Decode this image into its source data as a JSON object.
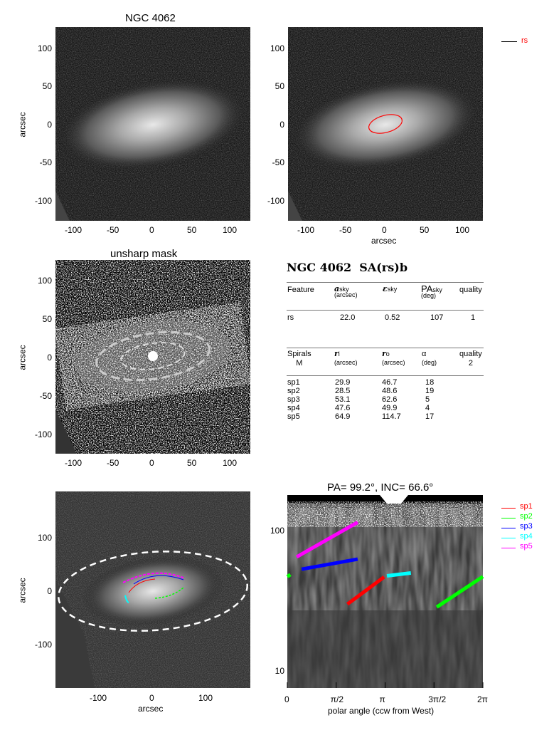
{
  "panels": {
    "p1": {
      "title": "NGC 4062",
      "ylabel": "arcsec",
      "yticks": [
        "100",
        "50",
        "0",
        "-50",
        "-100"
      ],
      "xticks": [
        "-100",
        "-50",
        "0",
        "50",
        "100"
      ]
    },
    "p2": {
      "xlabel": "arcsec",
      "yticks": [
        "100",
        "50",
        "0",
        "-50",
        "-100"
      ],
      "xticks": [
        "-100",
        "-50",
        "0",
        "50",
        "100"
      ],
      "legend": [
        {
          "label": "rs",
          "color": "#ff0000"
        }
      ]
    },
    "p3": {
      "title": "unsharp mask",
      "ylabel": "arcsec",
      "yticks": [
        "100",
        "50",
        "0",
        "-50",
        "-100"
      ],
      "xticks": [
        "-100",
        "-50",
        "0",
        "50",
        "100"
      ]
    },
    "p5": {
      "xlabel": "arcsec",
      "ylabel": "arcsec",
      "yticks": [
        "100",
        "0",
        "-100"
      ],
      "xticks": [
        "-100",
        "0",
        "100"
      ]
    }
  },
  "table": {
    "title": "NGC 4062  SA(rs)b",
    "h1": {
      "feature": "Feature",
      "a": "a",
      "a_sub": "sky",
      "a_unit": "(arcsec)",
      "e": "ε",
      "e_sub": "sky",
      "pa": "PA",
      "pa_sub": "sky",
      "pa_unit": "(deg)",
      "quality": "quality"
    },
    "rows1": [
      {
        "feature": "rs",
        "a": "22.0",
        "e": "0.52",
        "pa": "107",
        "quality": "1"
      }
    ],
    "h2": {
      "spirals": "Spirals",
      "m": "M",
      "ri": "r",
      "ri_sub": "i",
      "ri_unit": "(arcsec)",
      "ro": "r",
      "ro_sub": "o",
      "ro_unit": "(arcsec)",
      "alpha": "α",
      "alpha_unit": "(deg)",
      "quality": "quality",
      "quality_val": "2"
    },
    "rows2": [
      {
        "name": "sp1",
        "ri": "29.9",
        "ro": "46.7",
        "alpha": "18"
      },
      {
        "name": "sp2",
        "ri": "28.5",
        "ro": "48.6",
        "alpha": "19"
      },
      {
        "name": "sp3",
        "ri": "53.1",
        "ro": "62.6",
        "alpha": "5"
      },
      {
        "name": "sp4",
        "ri": "47.6",
        "ro": "49.9",
        "alpha": "4"
      },
      {
        "name": "sp5",
        "ri": "64.9",
        "ro": "114.7",
        "alpha": "17"
      }
    ]
  },
  "chart_data": {
    "type": "line",
    "title": "PA=  99.2°, INC=  66.6°",
    "xlabel": "polar angle (ccw from West)",
    "ylabel": "",
    "xlim": [
      0,
      6.2832
    ],
    "ylim": [
      7,
      170
    ],
    "yscale": "log",
    "xticks": [
      {
        "v": 0,
        "label": "0"
      },
      {
        "v": 1.5708,
        "label": "π/2"
      },
      {
        "v": 3.1416,
        "label": "π"
      },
      {
        "v": 4.7124,
        "label": "3π/2"
      },
      {
        "v": 6.2832,
        "label": "2π"
      }
    ],
    "yticks": [
      {
        "v": 100,
        "label": "100"
      },
      {
        "v": 10,
        "label": "10"
      }
    ],
    "legend": "right",
    "series": [
      {
        "name": "sp1",
        "color": "#ff0000",
        "segments": [
          [
            [
              1.93,
              29.9
            ],
            [
              3.11,
              46.7
            ]
          ]
        ]
      },
      {
        "name": "sp2",
        "color": "#00ff00",
        "segments": [
          [
            [
              4.8,
              28.5
            ],
            [
              6.2832,
              47.0
            ]
          ],
          [
            [
              0,
              47.0
            ],
            [
              0.1,
              48.6
            ]
          ]
        ]
      },
      {
        "name": "sp3",
        "color": "#0000ff",
        "segments": [
          [
            [
              0.46,
              53.1
            ],
            [
              2.26,
              62.6
            ]
          ]
        ]
      },
      {
        "name": "sp4",
        "color": "#00ffff",
        "segments": [
          [
            [
              3.2,
              47.6
            ],
            [
              3.97,
              49.9
            ]
          ]
        ]
      },
      {
        "name": "sp5",
        "color": "#ff00ff",
        "segments": [
          [
            [
              0.3,
              64.9
            ],
            [
              2.26,
              114.7
            ]
          ]
        ]
      }
    ]
  }
}
